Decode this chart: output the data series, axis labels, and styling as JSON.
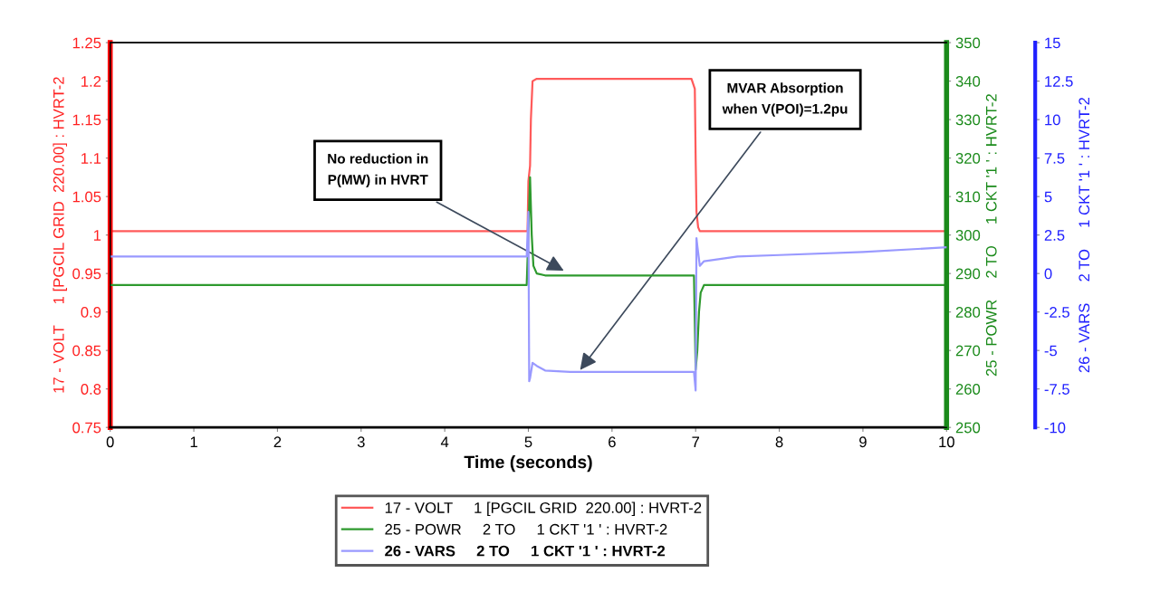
{
  "chart_data": {
    "type": "line",
    "xlabel": "Time (seconds)",
    "ylabel": "17 - VOLT     1 [PGCIL GRID  220.00] : HVRT-2",
    "y2label": "25 - POWR     2 TO     1 CKT '1 ' : HVRT-2",
    "y3label": "26 - VARS     2 TO     1 CKT '1 ' : HVRT-2",
    "xlim": [
      0,
      10
    ],
    "xticks": [
      0,
      1,
      2,
      3,
      4,
      5,
      6,
      7,
      8,
      9,
      10
    ],
    "ylim": [
      0.75,
      1.25
    ],
    "yticks": [
      0.75,
      0.8,
      0.85,
      0.9,
      0.95,
      1,
      1.05,
      1.1,
      1.15,
      1.2,
      1.25
    ],
    "y2lim": [
      250,
      350
    ],
    "y2ticks": [
      250,
      260,
      270,
      280,
      290,
      300,
      310,
      320,
      330,
      340,
      350
    ],
    "y3lim": [
      -10,
      15
    ],
    "y3ticks": [
      -10,
      -7.5,
      -5,
      -2.5,
      0,
      2.5,
      5,
      7.5,
      10,
      12.5,
      15
    ],
    "grid": false,
    "legend": "bottom",
    "marker": "none",
    "line_style": "solid",
    "series": [
      {
        "name": "17 - VOLT     1 [PGCIL GRID  220.00] : HVRT-2",
        "color": "#ff5a5a",
        "x": [
          0,
          4.99,
          5.0,
          5.02,
          5.03,
          5.05,
          5.1,
          6.95,
          6.99,
          7.0,
          7.01,
          7.03,
          7.05,
          10
        ],
        "values": [
          1.005,
          1.005,
          1.07,
          1.09,
          1.15,
          1.2,
          1.203,
          1.203,
          1.19,
          1.1,
          1.03,
          1.01,
          1.005,
          1.005
        ]
      },
      {
        "name": "25 - POWR     2 TO     1 CKT '1 ' : HVRT-2",
        "color": "#2e9a2e",
        "axis": "y2",
        "x": [
          0,
          4.98,
          5.0,
          5.02,
          5.04,
          5.06,
          5.1,
          5.2,
          6.98,
          7.0,
          7.02,
          7.04,
          7.06,
          7.1,
          10
        ],
        "values": [
          287,
          287,
          300,
          315,
          300,
          292,
          290,
          289.5,
          289.5,
          265,
          270,
          280,
          285,
          287,
          287
        ]
      },
      {
        "name": "26 - VARS     2 TO     1 CKT '1 ' : HVRT-2",
        "color": "#9999ff",
        "axis": "y3",
        "x": [
          0,
          4.98,
          5.0,
          5.01,
          5.02,
          5.05,
          5.1,
          5.2,
          5.5,
          6.98,
          7.0,
          7.01,
          7.02,
          7.05,
          7.1,
          7.5,
          8,
          9,
          10
        ],
        "values": [
          1.1,
          1.1,
          4,
          -7,
          -6.8,
          -5.8,
          -6,
          -6.3,
          -6.4,
          -6.4,
          -7.6,
          2.3,
          1.8,
          0.5,
          0.8,
          1.1,
          1.2,
          1.4,
          1.7
        ]
      }
    ],
    "annotations": [
      {
        "text": "No reduction in\nP(MW) in HVRT",
        "x": 5.45,
        "y": 0.952
      },
      {
        "text": "MVAR Absorption\nwhen V(POI)=1.2pu",
        "x": 5.6,
        "y": 0.822
      }
    ]
  }
}
